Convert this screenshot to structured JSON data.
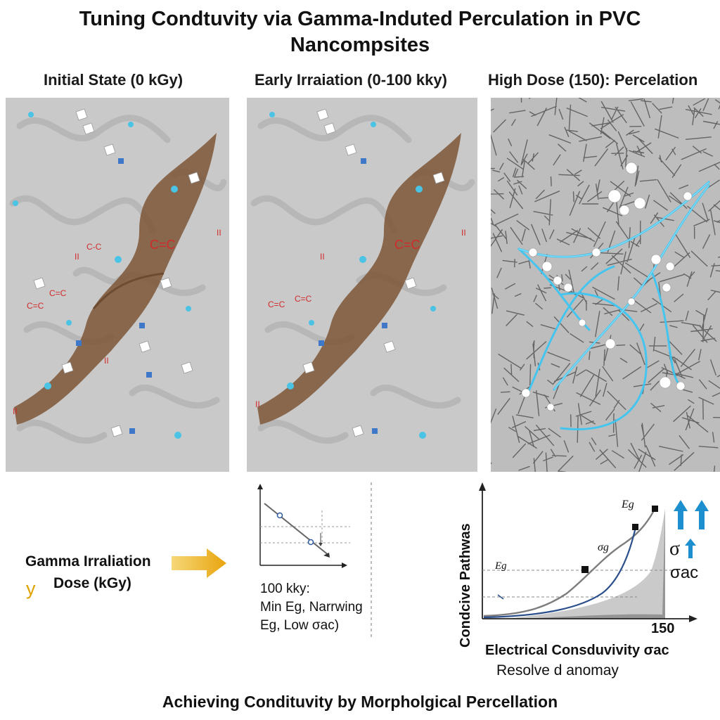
{
  "title": {
    "line1": "Tuning Condtuvity via Gamma-Induted Perculation in PVC",
    "line2": "Nancompsites"
  },
  "panels": [
    {
      "heading": "Initial State (0 kGy)",
      "labels": [
        "C=C",
        "C=C",
        "C-C",
        "C=C",
        "II",
        "II",
        "II",
        "II"
      ]
    },
    {
      "heading": "Early Irraiation (0-100 kky)",
      "labels": [
        "C=C",
        "C=C",
        "C=C",
        "II",
        "II",
        "II"
      ]
    },
    {
      "heading": "High Dose (150): Percelation"
    }
  ],
  "input": {
    "label_line1": "Gamma Irraliation",
    "label_line2": "Dose (kGy)",
    "symbol": "y"
  },
  "mini_chart": {
    "caption_line1": "100 kky:",
    "caption_line2": "Min Eg, Narrwing",
    "caption_line3": "Eg, Low σac)"
  },
  "main_chart": {
    "ylabel": "Condcive Pathwas",
    "xlabel": "Electrical Consduvivity σac",
    "subcaption": "Resolve d anomay",
    "x_tick": "150",
    "labels": {
      "eg_top": "Eg",
      "sigma_g": "σg",
      "eg_left": "Eg",
      "sigma": "σ",
      "sigma_ac": "σac"
    }
  },
  "footer": "Achieving Condituvity by Morpholgical Percellation",
  "colors": {
    "panel_bg": "#c9c9c9",
    "ribbon": "#7a5232",
    "highlight_blue": "#3ec6f2",
    "arrow_gold": "#f0b41c",
    "arrow_blue": "#1e8fce",
    "curve_gray": "#7d7d7d",
    "curve_navy": "#2b4f8c",
    "shade": "#8f8f8f",
    "label_red": "#d22a2a"
  }
}
